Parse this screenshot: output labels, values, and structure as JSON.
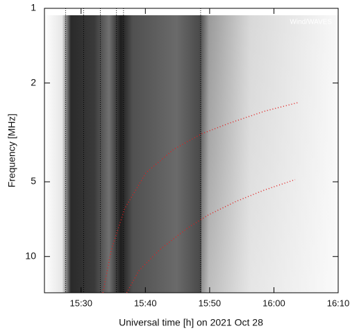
{
  "chart_data": {
    "type": "spectrogram",
    "annotation": "Wind/WAVES",
    "x_label": "Universal time [h] on 2021 Oct 28",
    "y_label": "Frequency [MHz]",
    "xlim": [
      924.3,
      970
    ],
    "xticks": [
      {
        "value": 930,
        "label": "15:30"
      },
      {
        "value": 940,
        "label": "15:40"
      },
      {
        "value": 950,
        "label": "15:50"
      },
      {
        "value": 960,
        "label": "16:00"
      },
      {
        "value": 970,
        "label": "16:10"
      }
    ],
    "ylim": [
      1,
      14
    ],
    "y_log": true,
    "y_inverted": true,
    "yticks": [
      1,
      2,
      5,
      10
    ],
    "vlines": [
      927.6,
      930.4,
      933.0,
      935.5,
      936.6,
      948.6
    ],
    "series": [
      {
        "color": "#e02020",
        "x": [
          933.4,
          934.7,
          936.8,
          940.1,
          944.4,
          948.8,
          953.1,
          958.5,
          963.7
        ],
        "values": [
          14.0,
          9.4,
          6.4,
          4.6,
          3.7,
          3.2,
          2.9,
          2.6,
          2.4
        ]
      },
      {
        "color": "#e02020",
        "x": [
          937.1,
          939.0,
          942.2,
          946.5,
          949.8,
          954.1,
          958.5,
          963.3
        ],
        "values": [
          14.0,
          11.4,
          9.4,
          7.7,
          6.8,
          6.0,
          5.4,
          4.9
        ]
      }
    ]
  }
}
